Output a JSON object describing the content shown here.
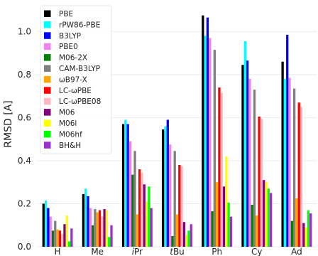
{
  "chart_data": {
    "type": "bar",
    "title": "",
    "xlabel": "",
    "ylabel": "RMSD [A]",
    "ylim": [
      0,
      1.14
    ],
    "yticks": [
      "0.0",
      "0.2",
      "0.4",
      "0.6",
      "0.8",
      "1.0"
    ],
    "grid": true,
    "legend_position": "top-left",
    "categories": [
      "H",
      "Me",
      "iPr",
      "tBu",
      "Ph",
      "Cy",
      "Ad"
    ],
    "category_labels": [
      {
        "prefix": "",
        "main": "H"
      },
      {
        "prefix": "",
        "main": "Me"
      },
      {
        "prefix": "i",
        "main": "Pr"
      },
      {
        "prefix": "t",
        "main": "Bu"
      },
      {
        "prefix": "",
        "main": "Ph"
      },
      {
        "prefix": "",
        "main": "Cy"
      },
      {
        "prefix": "",
        "main": "Ad"
      }
    ],
    "series": [
      {
        "name": "PBE",
        "color": "#000000",
        "values": [
          0.2,
          0.245,
          0.57,
          0.545,
          1.075,
          0.845,
          0.86
        ]
      },
      {
        "name": "rPW86-PBE",
        "color": "#00ffff",
        "values": [
          0.215,
          0.27,
          0.59,
          0.56,
          0.98,
          0.955,
          0.78
        ]
      },
      {
        "name": "B3LYP",
        "color": "#0000ff",
        "values": [
          0.18,
          0.235,
          0.57,
          0.59,
          1.065,
          0.865,
          0.985
        ]
      },
      {
        "name": "PBE0",
        "color": "#ee82ee",
        "values": [
          0.14,
          0.18,
          0.49,
          0.475,
          0.97,
          0.78,
          0.785
        ]
      },
      {
        "name": "M06-2X",
        "color": "#007f00",
        "values": [
          0.075,
          0.1,
          0.335,
          0.05,
          0.165,
          0.195,
          0.12
        ]
      },
      {
        "name": "CAM-B3LYP",
        "color": "#808080",
        "values": [
          0.12,
          0.175,
          0.445,
          0.445,
          0.915,
          0.73,
          0.735
        ]
      },
      {
        "name": "ωB97-X",
        "color": "#ffa500",
        "values": [
          0.08,
          0.16,
          0.15,
          0.15,
          0.3,
          0.145,
          0.225
        ]
      },
      {
        "name": "LC-ωPBE",
        "color": "#ff0000",
        "values": [
          0.075,
          0.17,
          0.36,
          0.38,
          0.74,
          0.605,
          0.67
        ]
      },
      {
        "name": "LC-ωPBE08",
        "color": "#ffb6c1",
        "values": [
          0.06,
          0.14,
          0.345,
          0.375,
          0.715,
          0.595,
          0.65
        ]
      },
      {
        "name": "M06",
        "color": "#800080",
        "values": [
          0.105,
          0.175,
          0.29,
          0.115,
          0.28,
          0.31,
          0.11
        ]
      },
      {
        "name": "M06l",
        "color": "#ffff00",
        "values": [
          0.145,
          0.17,
          0.21,
          0.055,
          0.42,
          0.3,
          0.09
        ]
      },
      {
        "name": "M06hf",
        "color": "#00ff00",
        "values": [
          0.025,
          0.045,
          0.28,
          0.075,
          0.205,
          0.27,
          0.17
        ]
      },
      {
        "name": "BH&H",
        "color": "#9932cc",
        "values": [
          0.085,
          0.1,
          0.18,
          0.105,
          0.14,
          0.25,
          0.155
        ]
      }
    ]
  }
}
